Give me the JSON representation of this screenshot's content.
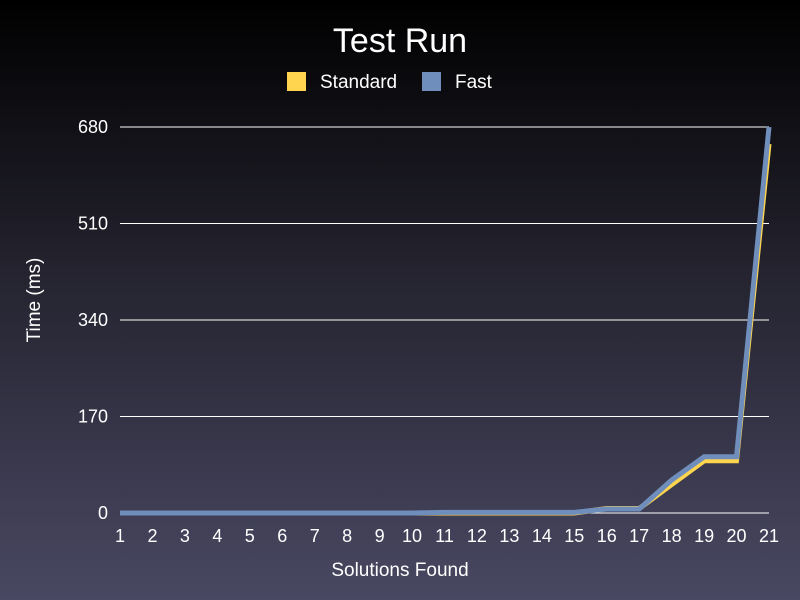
{
  "chart_data": {
    "type": "line",
    "title": "Test Run",
    "xlabel": "Solutions Found",
    "ylabel": "Time (ms)",
    "x": [
      1,
      2,
      3,
      4,
      5,
      6,
      7,
      8,
      9,
      10,
      11,
      12,
      13,
      14,
      15,
      16,
      17,
      18,
      19,
      20,
      21
    ],
    "x_tick_labels": [
      "1",
      "2",
      "3",
      "4",
      "5",
      "6",
      "7",
      "8",
      "9",
      "10",
      "11",
      "12",
      "13",
      "14",
      "15",
      "16",
      "17",
      "18",
      "19",
      "20",
      "21"
    ],
    "ylim": [
      0,
      680
    ],
    "y_ticks": [
      0,
      170,
      340,
      510,
      680
    ],
    "y_tick_labels": [
      "0",
      "170",
      "340",
      "510",
      "680"
    ],
    "grid": true,
    "legend_position": "top-center",
    "series": [
      {
        "name": "Standard",
        "color": "#ffd54f",
        "values": [
          0,
          0,
          0,
          0,
          0,
          0,
          0,
          0,
          0,
          0,
          0,
          0,
          0,
          0,
          0,
          8,
          8,
          50,
          92,
          92,
          650
        ]
      },
      {
        "name": "Fast",
        "color": "#6f8ebc",
        "values": [
          0,
          0,
          0,
          0,
          0,
          0,
          0,
          0,
          0,
          0,
          1,
          1,
          1,
          1,
          1,
          7,
          7,
          58,
          99,
          99,
          680
        ]
      }
    ]
  }
}
